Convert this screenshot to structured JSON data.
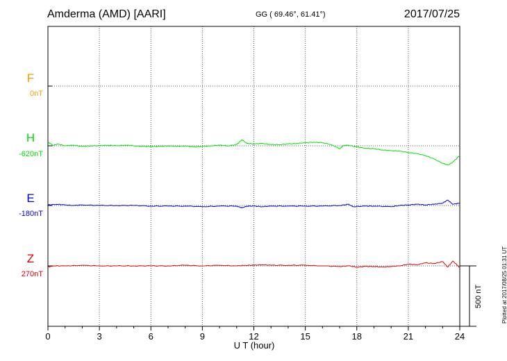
{
  "header": {
    "station": "Amderma (AMD)  [AARI]",
    "coords": "GG ( 69.46°,  61.41°)",
    "date": "2017/07/25"
  },
  "footer": {
    "plotted": "Plotted at 2017/08/25 01:31  UT"
  },
  "chart_data": {
    "type": "line",
    "xlabel": "U T (hour)",
    "xlim": [
      0,
      24
    ],
    "xticks": [
      0,
      3,
      6,
      9,
      12,
      15,
      18,
      21,
      24
    ],
    "scale_bar": "500 nT",
    "series": [
      {
        "name": "F",
        "offset_label": "0nT",
        "color": "#f0a000",
        "values": []
      },
      {
        "name": "H",
        "offset_label": "-620nT",
        "color": "#00e000",
        "values": [
          [
            0,
            30
          ],
          [
            0.3,
            5
          ],
          [
            0.6,
            15
          ],
          [
            1,
            0
          ],
          [
            1.5,
            5
          ],
          [
            2,
            -5
          ],
          [
            2.5,
            0
          ],
          [
            3,
            0
          ],
          [
            3.5,
            5
          ],
          [
            4,
            0
          ],
          [
            4.5,
            5
          ],
          [
            5,
            0
          ],
          [
            5.5,
            -5
          ],
          [
            6,
            -5
          ],
          [
            6.5,
            -5
          ],
          [
            7,
            0
          ],
          [
            7.5,
            -5
          ],
          [
            8,
            0
          ],
          [
            8.5,
            -10
          ],
          [
            9,
            -5
          ],
          [
            9.5,
            0
          ],
          [
            10,
            5
          ],
          [
            10.5,
            0
          ],
          [
            11,
            10
          ],
          [
            11.3,
            50
          ],
          [
            11.6,
            20
          ],
          [
            12,
            15
          ],
          [
            12.5,
            20
          ],
          [
            13,
            10
          ],
          [
            13.5,
            10
          ],
          [
            14,
            15
          ],
          [
            14.5,
            20
          ],
          [
            15,
            25
          ],
          [
            15.5,
            30
          ],
          [
            16,
            25
          ],
          [
            16.5,
            10
          ],
          [
            17,
            -25
          ],
          [
            17.2,
            0
          ],
          [
            17.5,
            5
          ],
          [
            18,
            -10
          ],
          [
            18.5,
            -20
          ],
          [
            19,
            -25
          ],
          [
            19.5,
            -35
          ],
          [
            20,
            -40
          ],
          [
            20.5,
            -45
          ],
          [
            21,
            -55
          ],
          [
            21.5,
            -65
          ],
          [
            22,
            -80
          ],
          [
            22.5,
            -110
          ],
          [
            23,
            -145
          ],
          [
            23.3,
            -160
          ],
          [
            23.6,
            -135
          ],
          [
            24,
            -80
          ]
        ]
      },
      {
        "name": "E",
        "offset_label": "-180nT",
        "color": "#0000e0",
        "values": [
          [
            0,
            5
          ],
          [
            0.5,
            10
          ],
          [
            1,
            5
          ],
          [
            1.5,
            0
          ],
          [
            2,
            5
          ],
          [
            3,
            0
          ],
          [
            4,
            0
          ],
          [
            5,
            0
          ],
          [
            6,
            -5
          ],
          [
            7,
            -5
          ],
          [
            8,
            -5
          ],
          [
            9,
            -10
          ],
          [
            10,
            -5
          ],
          [
            11,
            -5
          ],
          [
            11.3,
            -20
          ],
          [
            11.6,
            -5
          ],
          [
            12,
            -5
          ],
          [
            12.5,
            -10
          ],
          [
            13,
            -5
          ],
          [
            14,
            -5
          ],
          [
            15,
            -5
          ],
          [
            16,
            -5
          ],
          [
            17,
            0
          ],
          [
            17.5,
            10
          ],
          [
            17.8,
            -10
          ],
          [
            18.5,
            -5
          ],
          [
            19,
            -5
          ],
          [
            20,
            -10
          ],
          [
            20.5,
            0
          ],
          [
            21,
            5
          ],
          [
            21.5,
            10
          ],
          [
            22,
            5
          ],
          [
            22.5,
            10
          ],
          [
            23,
            20
          ],
          [
            23.3,
            45
          ],
          [
            23.6,
            10
          ],
          [
            24,
            20
          ]
        ]
      },
      {
        "name": "Z",
        "offset_label": "270nT",
        "color": "#e00000",
        "values": [
          [
            0,
            -10
          ],
          [
            0.3,
            0
          ],
          [
            1,
            0
          ],
          [
            2,
            5
          ],
          [
            3,
            0
          ],
          [
            4,
            0
          ],
          [
            5,
            0
          ],
          [
            6,
            0
          ],
          [
            7,
            0
          ],
          [
            8,
            5
          ],
          [
            9,
            0
          ],
          [
            10,
            5
          ],
          [
            11,
            0
          ],
          [
            11.5,
            5
          ],
          [
            12,
            5
          ],
          [
            12.5,
            10
          ],
          [
            13,
            5
          ],
          [
            14,
            5
          ],
          [
            15,
            5
          ],
          [
            16,
            0
          ],
          [
            17,
            -5
          ],
          [
            17.5,
            0
          ],
          [
            18,
            -10
          ],
          [
            18.5,
            -5
          ],
          [
            19,
            -5
          ],
          [
            19.5,
            -10
          ],
          [
            20,
            -5
          ],
          [
            20.5,
            0
          ],
          [
            21,
            15
          ],
          [
            21.5,
            10
          ],
          [
            22,
            25
          ],
          [
            22.5,
            20
          ],
          [
            23,
            35
          ],
          [
            23.3,
            -10
          ],
          [
            23.6,
            40
          ],
          [
            24,
            -15
          ]
        ]
      }
    ]
  }
}
